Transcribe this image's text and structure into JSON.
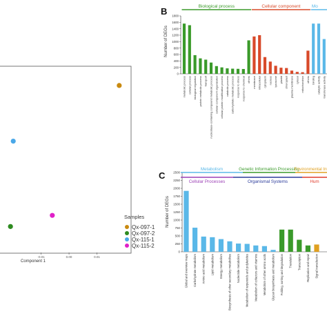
{
  "chart_data": [
    {
      "panel": "A",
      "type": "scatter",
      "title": "",
      "xlabel": "Component 1",
      "ylabel": "",
      "x_ticks": [
        "0.00",
        "-0.01",
        "0.01"
      ],
      "legend_title": "Samples",
      "legend_position": "right",
      "points": [
        {
          "name": "Qx-097-1",
          "x": 0.018,
          "y": 0.02,
          "color": "#c98a10"
        },
        {
          "name": "Qx-097-2",
          "x": -0.021,
          "y": -0.018,
          "color": "#2e8b20"
        },
        {
          "name": "Qx-115-1",
          "x": -0.02,
          "y": 0.005,
          "color": "#4aa8e8"
        },
        {
          "name": "Qx-115-2",
          "x": -0.006,
          "y": -0.015,
          "color": "#e020c8"
        }
      ]
    },
    {
      "panel": "B",
      "type": "bar",
      "ylabel": "Number of DEGs",
      "ylim": [
        0,
        1800
      ],
      "y_ticks": [
        0,
        200,
        400,
        600,
        800,
        1000,
        1200,
        1400,
        1600,
        1800
      ],
      "groups": [
        {
          "name": "Biological process",
          "color": "#3a9a2a"
        },
        {
          "name": "Cellular component",
          "color": "#d84a2a"
        },
        {
          "name": "Mo",
          "color": "#5ab8e8"
        }
      ],
      "categories": [
        "metabolic process",
        "cellular process",
        "biological regulation",
        "protein metabolic process",
        "transport",
        "nucleobase-containing compound metabolic process",
        "cellular component organization",
        "cellular protein modification process",
        "catabolic process",
        "carbohydrate metabolic process",
        "response to stress",
        "response to chemical",
        "others",
        "membrane",
        "intracellular",
        "cytoplasm",
        "nucleus",
        "lysosome",
        "plastid",
        "chloroplast",
        "plasma membrane",
        "cytosol",
        "mitochondrion",
        "others",
        "binding",
        "catalytic activity",
        "transferase activity",
        "hydrolase activity"
      ],
      "groups_of_categories": [
        0,
        0,
        0,
        0,
        0,
        0,
        0,
        0,
        0,
        0,
        0,
        0,
        0,
        1,
        1,
        1,
        1,
        1,
        1,
        1,
        1,
        1,
        1,
        1,
        2,
        2,
        2,
        2
      ],
      "values": [
        1560,
        1510,
        580,
        480,
        440,
        350,
        240,
        200,
        170,
        160,
        155,
        150,
        1040,
        1160,
        1200,
        520,
        380,
        250,
        190,
        180,
        100,
        60,
        50,
        720,
        1560,
        1560,
        1080,
        1050
      ]
    },
    {
      "panel": "C",
      "type": "bar",
      "ylabel": "Number of DEGs",
      "ylim": [
        0,
        2500
      ],
      "y_ticks": [
        0,
        250,
        500,
        750,
        1000,
        1250,
        1500,
        1750,
        2000,
        2250,
        2500
      ],
      "top_groups": [
        {
          "name": "Metabolism",
          "color": "#5ab8e8"
        },
        {
          "name": "Genetic Information Processing",
          "color": "#3a9a2a"
        },
        {
          "name": "Environmental Inf",
          "color": "#e0a020"
        }
      ],
      "bottom_groups": [
        {
          "name": "Cellular Processes",
          "color": "#9b3fb5"
        },
        {
          "name": "Organismal Systems",
          "color": "#2a3a9a"
        },
        {
          "name": "Hum",
          "color": "#e03a2a"
        }
      ],
      "categories": [
        "Global and overview maps",
        "Carbohydrate metabolism",
        "Amino acid metabolism",
        "Lipid metabolism",
        "Energy metabolism",
        "Biosynthesis of other secondary metabolites",
        "Nucleotide metabolism",
        "Metabolism of terpenoids and polyketides",
        "Metabolism of cofactors and vitamins",
        "Metabolism of other amino acids",
        "Glycan biosynthesis and metabolism",
        "Folding, sorting and degradation",
        "Translation",
        "Transcription",
        "Replication and repair",
        "Signal transduction"
      ],
      "groups_of_categories": [
        0,
        0,
        0,
        0,
        0,
        0,
        0,
        0,
        0,
        0,
        0,
        1,
        1,
        1,
        1,
        2
      ],
      "values": [
        1920,
        760,
        480,
        460,
        400,
        330,
        260,
        250,
        200,
        180,
        60,
        700,
        700,
        380,
        200,
        230
      ]
    }
  ],
  "labels": {
    "panelA": "",
    "panelB": "B",
    "panelC": "C"
  }
}
